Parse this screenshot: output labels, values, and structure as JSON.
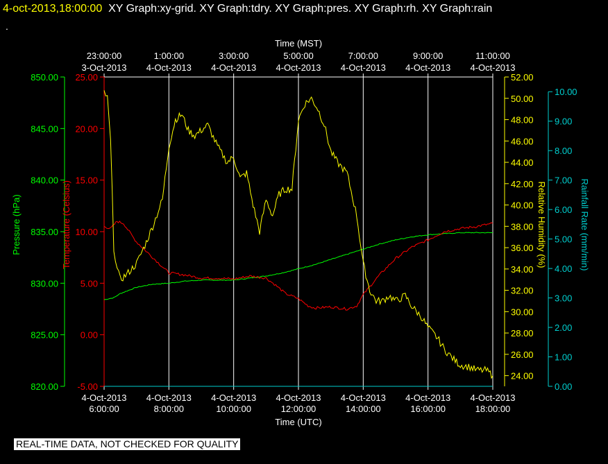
{
  "header": {
    "date_label": "4-oct-2013,18:00:00",
    "graphs_label": "XY Graph:xy-grid.  XY Graph:tdry.  XY Graph:pres.  XY Graph:rh.  XY Graph:rain",
    "dot": "."
  },
  "footer": {
    "quality_note": "REAL-TIME DATA, NOT CHECKED FOR QUALITY"
  },
  "colors": {
    "pressure": "#00ff00",
    "temperature": "#ff0000",
    "humidity": "#ffff00",
    "rain": "#00d0d0",
    "grid": "#ffffff"
  },
  "chart_data": {
    "type": "line",
    "xlabel_bottom": "Time (UTC)",
    "xlabel_top": "Time (MST)",
    "bottom_ticks": [
      {
        "time": "6:00:00",
        "date": "4-Oct-2013"
      },
      {
        "time": "8:00:00",
        "date": "4-Oct-2013"
      },
      {
        "time": "10:00:00",
        "date": "4-Oct-2013"
      },
      {
        "time": "12:00:00",
        "date": "4-Oct-2013"
      },
      {
        "time": "14:00:00",
        "date": "4-Oct-2013"
      },
      {
        "time": "16:00:00",
        "date": "4-Oct-2013"
      },
      {
        "time": "18:00:00",
        "date": "4-Oct-2013"
      }
    ],
    "top_ticks": [
      {
        "time": "23:00:00",
        "date": "3-Oct-2013"
      },
      {
        "time": "1:00:00",
        "date": "4-Oct-2013"
      },
      {
        "time": "3:00:00",
        "date": "4-Oct-2013"
      },
      {
        "time": "5:00:00",
        "date": "4-Oct-2013"
      },
      {
        "time": "7:00:00",
        "date": "4-Oct-2013"
      },
      {
        "time": "9:00:00",
        "date": "4-Oct-2013"
      },
      {
        "time": "11:00:00",
        "date": "4-Oct-2013"
      }
    ],
    "xlim_utc_hours": [
      6,
      18
    ],
    "axes": {
      "pressure": {
        "label": "Pressure (hPa)",
        "range": [
          820,
          850
        ],
        "ticks": [
          "820.00",
          "825.00",
          "830.00",
          "835.00",
          "840.00",
          "845.00",
          "850.00"
        ]
      },
      "temperature": {
        "label": "Temperature (Celsius)",
        "range": [
          -5,
          25
        ],
        "ticks": [
          "-5.00",
          "0.00",
          "5.00",
          "10.00",
          "15.00",
          "20.00",
          "25.00"
        ]
      },
      "humidity": {
        "label": "Relative Humidity (%)",
        "range": [
          23,
          52
        ],
        "ticks": [
          "24.00",
          "26.00",
          "28.00",
          "30.00",
          "32.00",
          "34.00",
          "36.00",
          "38.00",
          "40.00",
          "42.00",
          "44.00",
          "46.00",
          "48.00",
          "50.00",
          "52.00"
        ]
      },
      "rain": {
        "label": "Rainfall Rate (mm/min)",
        "range": [
          0,
          10.5
        ],
        "ticks": [
          "0.00",
          "1.00",
          "2.00",
          "3.00",
          "4.00",
          "5.00",
          "6.00",
          "7.00",
          "8.00",
          "9.00",
          "10.00"
        ]
      }
    },
    "series": [
      {
        "name": "Pressure (hPa)",
        "axis": "pressure",
        "x": [
          6.0,
          6.3,
          6.5,
          7.0,
          7.5,
          8.0,
          8.5,
          9.0,
          9.5,
          10.0,
          10.5,
          11.0,
          11.5,
          12.0,
          12.5,
          13.0,
          13.5,
          14.0,
          14.5,
          15.0,
          15.5,
          16.0,
          16.5,
          17.0,
          17.5,
          18.0
        ],
        "values": [
          828.4,
          828.6,
          829.0,
          829.6,
          829.9,
          830.0,
          830.2,
          830.3,
          830.3,
          830.3,
          830.5,
          830.7,
          831.0,
          831.4,
          831.8,
          832.3,
          832.8,
          833.3,
          833.8,
          834.2,
          834.5,
          834.7,
          834.8,
          834.9,
          834.9,
          834.9
        ]
      },
      {
        "name": "Temperature (Celsius)",
        "axis": "temperature",
        "x": [
          6.0,
          6.2,
          6.4,
          6.6,
          7.0,
          7.5,
          8.0,
          8.5,
          9.0,
          9.5,
          10.0,
          10.5,
          11.0,
          11.3,
          11.6,
          12.0,
          12.3,
          12.5,
          13.0,
          13.5,
          13.8,
          14.0,
          14.5,
          15.0,
          15.5,
          16.0,
          16.5,
          17.0,
          17.5,
          18.0
        ],
        "values": [
          10.5,
          10.3,
          11.0,
          10.8,
          9.0,
          7.5,
          6.0,
          5.8,
          5.5,
          5.5,
          5.4,
          5.7,
          5.5,
          4.8,
          4.0,
          3.5,
          2.8,
          2.6,
          2.7,
          2.5,
          2.8,
          3.9,
          5.8,
          7.4,
          8.5,
          9.2,
          10.0,
          10.3,
          10.5,
          10.8
        ]
      },
      {
        "name": "Relative Humidity (%)",
        "axis": "humidity",
        "x": [
          6.0,
          6.1,
          6.2,
          6.3,
          6.4,
          6.5,
          6.7,
          7.0,
          7.3,
          7.5,
          7.8,
          8.0,
          8.2,
          8.4,
          8.6,
          8.8,
          9.0,
          9.2,
          9.5,
          9.8,
          10.0,
          10.2,
          10.4,
          10.6,
          10.8,
          11.0,
          11.2,
          11.4,
          11.6,
          11.8,
          12.0,
          12.2,
          12.4,
          12.6,
          12.8,
          13.0,
          13.2,
          13.5,
          13.8,
          14.0,
          14.2,
          14.4,
          14.6,
          14.8,
          15.0,
          15.3,
          15.5,
          15.8,
          16.0,
          16.3,
          16.5,
          16.8,
          17.0,
          17.3,
          17.5,
          17.8,
          18.0
        ],
        "values": [
          50.6,
          50.0,
          46.0,
          36.0,
          34.0,
          33.0,
          33.5,
          34.5,
          36.5,
          38.0,
          40.5,
          45.5,
          48.0,
          48.5,
          47.0,
          46.5,
          47.0,
          47.5,
          45.5,
          44.0,
          44.5,
          42.5,
          43.0,
          40.0,
          37.5,
          40.5,
          39.0,
          41.0,
          41.5,
          41.5,
          48.0,
          49.5,
          50.0,
          49.0,
          47.5,
          45.0,
          44.0,
          43.0,
          39.0,
          34.5,
          32.0,
          31.0,
          31.0,
          31.5,
          31.0,
          31.5,
          30.5,
          29.5,
          28.5,
          27.5,
          26.5,
          25.5,
          25.0,
          24.8,
          24.5,
          24.5,
          24.0
        ]
      },
      {
        "name": "Rainfall Rate (mm/min)",
        "axis": "rain",
        "x": [
          6.0,
          18.0
        ],
        "values": [
          0.0,
          0.0
        ]
      }
    ]
  }
}
